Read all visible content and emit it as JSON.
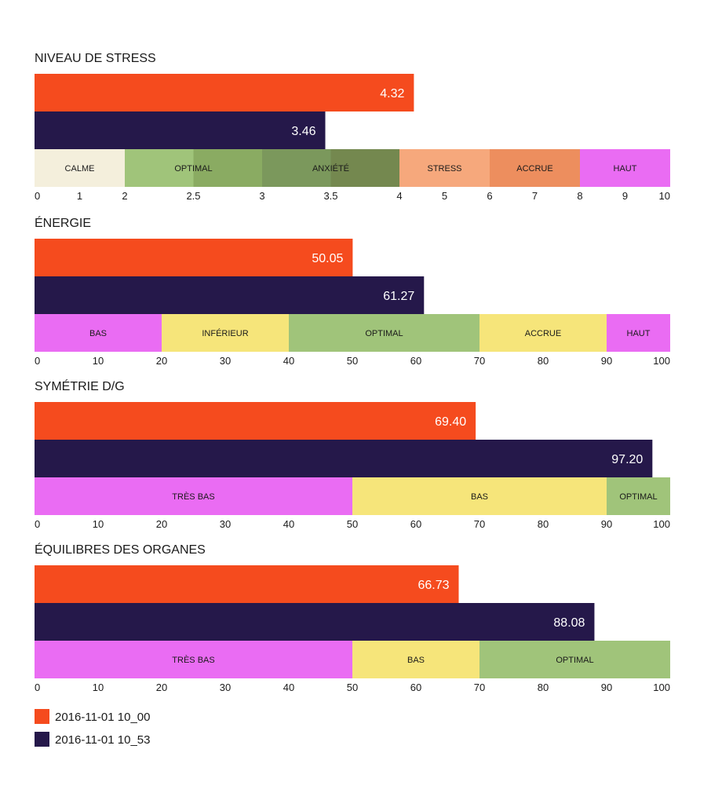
{
  "colors": {
    "series1": "#f54b1e",
    "series2": "#25184a",
    "calme": "#f4efdc",
    "optimal_light": "#a0c47a",
    "optimal_mid": "#8aab62",
    "anxiete_mid": "#7b985c",
    "anxiete_dark": "#74884f",
    "stress": "#f6a87c",
    "accrue_orange": "#ed8e5e",
    "haut_pink": "#ea6cf3",
    "bas_pink": "#ea6cf3",
    "inferieur_yellow": "#f6e57a",
    "accrue_yellow": "#f6e57a",
    "bas_yellow": "#f6e57a"
  },
  "legend": [
    {
      "label": "2016-11-01 10_00",
      "color": "#f54b1e"
    },
    {
      "label": "2016-11-01 10_53",
      "color": "#25184a"
    }
  ],
  "chart_data": [
    {
      "type": "bar",
      "title": "NIVEAU DE STRESS",
      "xlim": [
        0,
        10
      ],
      "scale": "piecewise",
      "breakpoints": [
        0,
        2,
        4,
        8,
        10
      ],
      "series": [
        {
          "name": "2016-11-01 10_00",
          "value": 4.32,
          "label": "4.32"
        },
        {
          "name": "2016-11-01 10_53",
          "value": 3.46,
          "label": "3.46"
        }
      ],
      "bands": [
        {
          "from": 0,
          "to": 2,
          "label": "CALME",
          "color": "#f4efdc"
        },
        {
          "from": 2,
          "to": 2.5,
          "label": "",
          "color": "#a0c47a"
        },
        {
          "from": 2.5,
          "to": 3,
          "label": "OPTIMAL",
          "color": "#8aab62",
          "label_at": 2.5
        },
        {
          "from": 3,
          "to": 3.5,
          "label": "",
          "color": "#7b985c"
        },
        {
          "from": 3.5,
          "to": 4,
          "label": "ANXIÉTÉ",
          "color": "#74884f",
          "label_at": 3.5
        },
        {
          "from": 4,
          "to": 6,
          "label": "STRESS",
          "color": "#f6a87c"
        },
        {
          "from": 6,
          "to": 8,
          "label": "ACCRUE",
          "color": "#ed8e5e"
        },
        {
          "from": 8,
          "to": 10,
          "label": "HAUT",
          "color": "#ea6cf3"
        }
      ],
      "ticks": [
        {
          "value": 0,
          "label": "0"
        },
        {
          "value": 1,
          "label": "1"
        },
        {
          "value": 2,
          "label": "2"
        },
        {
          "value": 2.5,
          "label": "2.5"
        },
        {
          "value": 3,
          "label": "3"
        },
        {
          "value": 3.5,
          "label": "3.5"
        },
        {
          "value": 4,
          "label": "4"
        },
        {
          "value": 5,
          "label": "5"
        },
        {
          "value": 6,
          "label": "6"
        },
        {
          "value": 7,
          "label": "7"
        },
        {
          "value": 8,
          "label": "8"
        },
        {
          "value": 9,
          "label": "9"
        },
        {
          "value": 10,
          "label": "10"
        }
      ]
    },
    {
      "type": "bar",
      "title": "ÉNERGIE",
      "xlim": [
        0,
        100
      ],
      "scale": "linear",
      "series": [
        {
          "name": "2016-11-01 10_00",
          "value": 50.05,
          "label": "50.05"
        },
        {
          "name": "2016-11-01 10_53",
          "value": 61.27,
          "label": "61.27"
        }
      ],
      "bands": [
        {
          "from": 0,
          "to": 20,
          "label": "BAS",
          "color": "#ea6cf3"
        },
        {
          "from": 20,
          "to": 40,
          "label": "INFÉRIEUR",
          "color": "#f6e57a"
        },
        {
          "from": 40,
          "to": 70,
          "label": "OPTIMAL",
          "color": "#a0c47a"
        },
        {
          "from": 70,
          "to": 90,
          "label": "ACCRUE",
          "color": "#f6e57a"
        },
        {
          "from": 90,
          "to": 100,
          "label": "HAUT",
          "color": "#ea6cf3"
        }
      ],
      "ticks": [
        {
          "value": 0,
          "label": "0"
        },
        {
          "value": 10,
          "label": "10"
        },
        {
          "value": 20,
          "label": "20"
        },
        {
          "value": 30,
          "label": "30"
        },
        {
          "value": 40,
          "label": "40"
        },
        {
          "value": 50,
          "label": "50"
        },
        {
          "value": 60,
          "label": "60"
        },
        {
          "value": 70,
          "label": "70"
        },
        {
          "value": 80,
          "label": "80"
        },
        {
          "value": 90,
          "label": "90"
        },
        {
          "value": 100,
          "label": "100"
        }
      ]
    },
    {
      "type": "bar",
      "title": "SYMÉTRIE D/G",
      "xlim": [
        0,
        100
      ],
      "scale": "linear",
      "series": [
        {
          "name": "2016-11-01 10_00",
          "value": 69.4,
          "label": "69.40"
        },
        {
          "name": "2016-11-01 10_53",
          "value": 97.2,
          "label": "97.20"
        }
      ],
      "bands": [
        {
          "from": 0,
          "to": 50,
          "label": "TRÈS BAS",
          "color": "#ea6cf3"
        },
        {
          "from": 50,
          "to": 90,
          "label": "BAS",
          "color": "#f6e57a"
        },
        {
          "from": 90,
          "to": 100,
          "label": "OPTIMAL",
          "color": "#a0c47a"
        }
      ],
      "ticks": [
        {
          "value": 0,
          "label": "0"
        },
        {
          "value": 10,
          "label": "10"
        },
        {
          "value": 20,
          "label": "20"
        },
        {
          "value": 30,
          "label": "30"
        },
        {
          "value": 40,
          "label": "40"
        },
        {
          "value": 50,
          "label": "50"
        },
        {
          "value": 60,
          "label": "60"
        },
        {
          "value": 70,
          "label": "70"
        },
        {
          "value": 80,
          "label": "80"
        },
        {
          "value": 90,
          "label": "90"
        },
        {
          "value": 100,
          "label": "100"
        }
      ]
    },
    {
      "type": "bar",
      "title": "ÉQUILIBRES DES ORGANES",
      "xlim": [
        0,
        100
      ],
      "scale": "linear",
      "series": [
        {
          "name": "2016-11-01 10_00",
          "value": 66.73,
          "label": "66.73"
        },
        {
          "name": "2016-11-01 10_53",
          "value": 88.08,
          "label": "88.08"
        }
      ],
      "bands": [
        {
          "from": 0,
          "to": 50,
          "label": "TRÈS BAS",
          "color": "#ea6cf3"
        },
        {
          "from": 50,
          "to": 70,
          "label": "BAS",
          "color": "#f6e57a"
        },
        {
          "from": 70,
          "to": 100,
          "label": "OPTIMAL",
          "color": "#a0c47a"
        }
      ],
      "ticks": [
        {
          "value": 0,
          "label": "0"
        },
        {
          "value": 10,
          "label": "10"
        },
        {
          "value": 20,
          "label": "20"
        },
        {
          "value": 30,
          "label": "30"
        },
        {
          "value": 40,
          "label": "40"
        },
        {
          "value": 50,
          "label": "50"
        },
        {
          "value": 60,
          "label": "60"
        },
        {
          "value": 70,
          "label": "70"
        },
        {
          "value": 80,
          "label": "80"
        },
        {
          "value": 90,
          "label": "90"
        },
        {
          "value": 100,
          "label": "100"
        }
      ]
    }
  ]
}
